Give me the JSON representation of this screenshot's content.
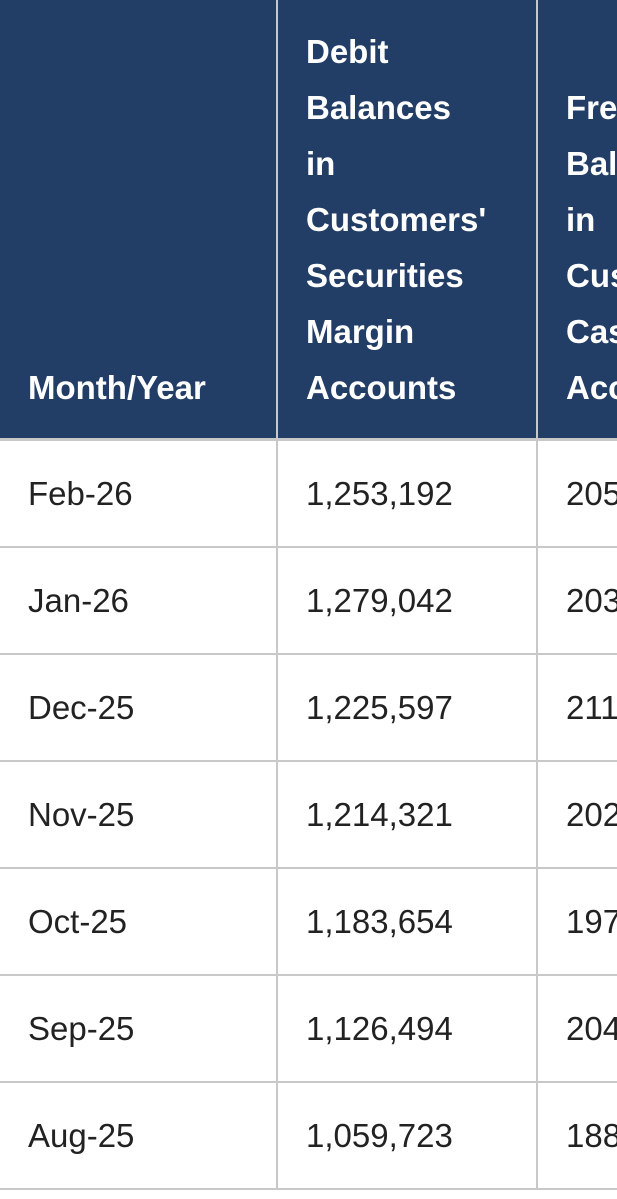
{
  "table": {
    "headers": [
      "Month/Year",
      "Debit\nBalances\nin\nCustomers'\nSecurities\nMargin\nAccounts",
      "Fre\nBal\nin\nCus\nCas\nAcc"
    ],
    "rows": [
      [
        "Feb-26",
        "1,253,192",
        "205"
      ],
      [
        "Jan-26",
        "1,279,042",
        "203"
      ],
      [
        "Dec-25",
        "1,225,597",
        "211"
      ],
      [
        "Nov-25",
        "1,214,321",
        "202"
      ],
      [
        "Oct-25",
        "1,183,654",
        "197"
      ],
      [
        "Sep-25",
        "1,126,494",
        "204"
      ],
      [
        "Aug-25",
        "1,059,723",
        "188"
      ]
    ]
  },
  "colors": {
    "header_bg": "#223d66",
    "border": "#c8c8c8"
  }
}
